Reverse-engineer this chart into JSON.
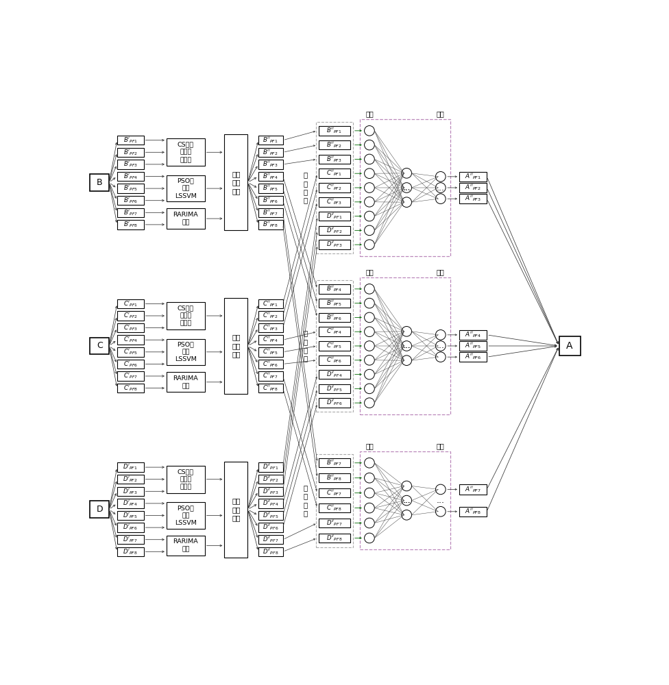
{
  "fig_width": 9.76,
  "fig_height": 10.0,
  "sections": [
    "B",
    "C",
    "D"
  ],
  "pf_labels_B_prime": [
    "B'_{PF1}",
    "B'_{PF2}",
    "B'_{PF3}",
    "B'_{PF4}",
    "B'_{PF5}",
    "B'_{PF6}",
    "B'_{PF7}",
    "B'_{PF8}"
  ],
  "pf_labels_C_prime": [
    "C'_{PF1}",
    "C'_{PF2}",
    "C'_{PF3}",
    "C'_{PF4}",
    "C'_{PF5}",
    "C'_{PF6}",
    "C'_{PF7}",
    "C'_{PF8}"
  ],
  "pf_labels_D_prime": [
    "D'_{PF1}",
    "D'_{PF2}",
    "D'_{PF3}",
    "D'_{PF4}",
    "D'_{PF5}",
    "D'_{PF6}",
    "D'_{PF7}",
    "D'_{PF8}"
  ],
  "pf_labels_B_double": [
    "B''_{PF1}",
    "B''_{PF2}",
    "B''_{PF3}",
    "B''_{PF4}",
    "B''_{PF5}",
    "B''_{PF6}",
    "B''_{PF7}",
    "B''_{PF8}"
  ],
  "pf_labels_C_double": [
    "C''_{PF1}",
    "C''_{PF2}",
    "C''_{PF3}",
    "C''_{PF4}",
    "C''_{PF5}",
    "C''_{PF6}",
    "C''_{PF7}",
    "C''_{PF8}"
  ],
  "pf_labels_D_double": [
    "D''_{PF1}",
    "D''_{PF2}",
    "D''_{PF3}",
    "D''_{PF4}",
    "D''_{PF5}",
    "D''_{PF6}",
    "D''_{PF7}",
    "D''_{PF8}"
  ],
  "model1": "CS优化\n小波神\n经网络",
  "model2": "PSO优\n化的\nLSSVM",
  "model3": "RARIMA\n模型",
  "predict": "超前\n多步\n预测",
  "freq_high": "高\n频\n序\n列",
  "freq_mid": "中\n频\n序\n列",
  "freq_low": "低\n频\n序\n列",
  "input_label": "输入",
  "output_label": "输出",
  "final_label": "A",
  "out_top": [
    "A''_{PF1}",
    "A''_{PF2}",
    "A''_{PF3}"
  ],
  "out_mid": [
    "A''_{PF4}",
    "A''_{PF5}",
    "A''_{PF6}"
  ],
  "out_bot": [
    "A''_{PF7}",
    "A''_{PF8}"
  ],
  "high_nn_items": [
    "B''_{PF1}",
    "B''_{PF2}",
    "B''_{PF3}",
    "C''_{PF1}",
    "C''_{PF2}",
    "C''_{PF3}",
    "D''_{PF1}",
    "D''_{PF2}",
    "D''_{PF3}"
  ],
  "mid_nn_items": [
    "B''_{PF4}",
    "B''_{PF5}",
    "B''_{PF6}",
    "C''_{PF4}",
    "C''_{PF5}",
    "C''_{PF6}",
    "D''_{PF4}",
    "D''_{PF5}",
    "D''_{PF6}"
  ],
  "low_nn_items": [
    "B''_{PF7}",
    "B''_{PF8}",
    "C''_{PF7}",
    "C''_{PF8}",
    "D''_{PF7}",
    "D''_{PF8}"
  ]
}
